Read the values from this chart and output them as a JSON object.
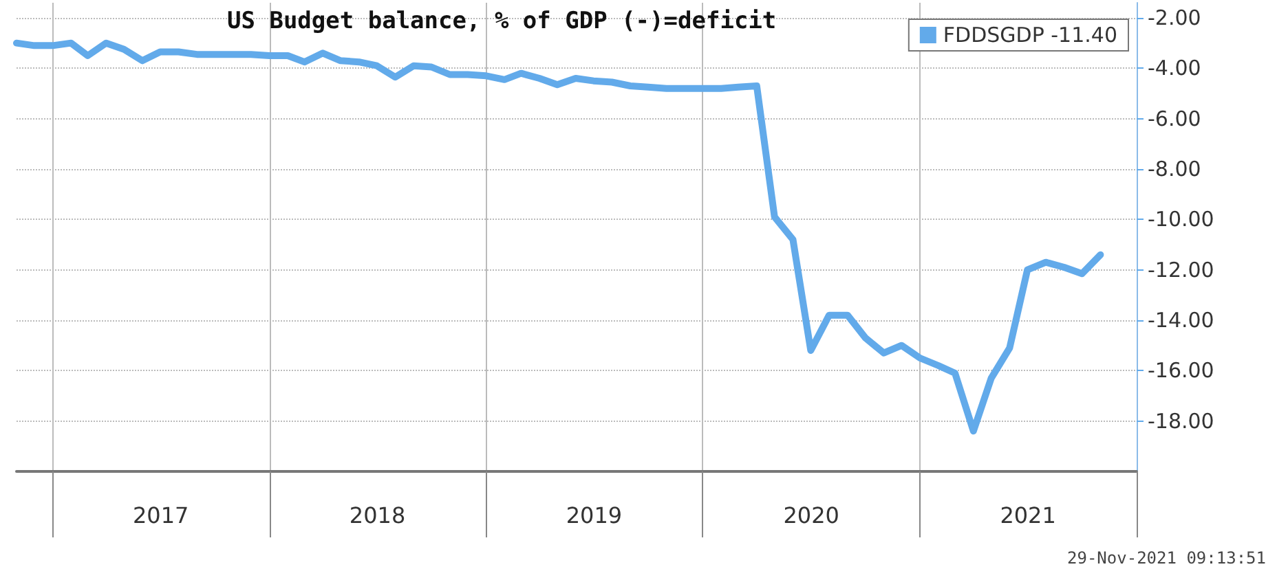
{
  "chart_data": {
    "type": "line",
    "title": "US Budget balance, % of GDP (-)=deficit",
    "x": [
      "2016-11",
      "2016-12",
      "2017-01",
      "2017-02",
      "2017-03",
      "2017-04",
      "2017-05",
      "2017-06",
      "2017-07",
      "2017-08",
      "2017-09",
      "2017-10",
      "2017-11",
      "2017-12",
      "2018-01",
      "2018-02",
      "2018-03",
      "2018-04",
      "2018-05",
      "2018-06",
      "2018-07",
      "2018-08",
      "2018-09",
      "2018-10",
      "2018-11",
      "2018-12",
      "2019-01",
      "2019-02",
      "2019-03",
      "2019-04",
      "2019-05",
      "2019-06",
      "2019-07",
      "2019-08",
      "2019-09",
      "2019-10",
      "2019-11",
      "2019-12",
      "2020-01",
      "2020-02",
      "2020-03",
      "2020-04",
      "2020-05",
      "2020-06",
      "2020-07",
      "2020-08",
      "2020-09",
      "2020-10",
      "2020-11",
      "2020-12",
      "2021-01",
      "2021-02",
      "2021-03",
      "2021-04",
      "2021-05",
      "2021-06",
      "2021-07",
      "2021-08",
      "2021-09",
      "2021-10",
      "2021-11"
    ],
    "series": [
      {
        "name": "FDDSGDP -11.40",
        "color": "#62aaea",
        "values": [
          -3.0,
          -3.1,
          -3.1,
          -3.0,
          -3.5,
          -3.0,
          -3.25,
          -3.7,
          -3.35,
          -3.35,
          -3.45,
          -3.45,
          -3.45,
          -3.45,
          -3.5,
          -3.5,
          -3.75,
          -3.4,
          -3.7,
          -3.75,
          -3.9,
          -4.35,
          -3.9,
          -3.95,
          -4.25,
          -4.25,
          -4.3,
          -4.45,
          -4.2,
          -4.4,
          -4.65,
          -4.4,
          -4.5,
          -4.55,
          -4.7,
          -4.75,
          -4.8,
          -4.8,
          -4.8,
          -4.8,
          -4.75,
          -4.7,
          -9.9,
          -10.8,
          -15.2,
          -13.8,
          -13.8,
          -14.7,
          -15.3,
          -15.0,
          -15.5,
          -15.8,
          -16.1,
          -18.4,
          -16.3,
          -15.1,
          -12.0,
          -11.7,
          -11.9,
          -12.15,
          -11.4
        ]
      }
    ],
    "xlim": [
      "2016-11-01",
      "2022-01-01"
    ],
    "xticks": [
      {
        "value": "2017-01-01",
        "label": null
      },
      {
        "value": "2017-07-02",
        "label": "2017"
      },
      {
        "value": "2018-01-01",
        "label": null
      },
      {
        "value": "2018-07-02",
        "label": "2018"
      },
      {
        "value": "2019-01-01",
        "label": null
      },
      {
        "value": "2019-07-02",
        "label": "2019"
      },
      {
        "value": "2020-01-01",
        "label": null
      },
      {
        "value": "2020-07-02",
        "label": "2020"
      },
      {
        "value": "2021-01-01",
        "label": null
      },
      {
        "value": "2021-07-02",
        "label": "2021"
      },
      {
        "value": "2022-01-01",
        "label": null
      }
    ],
    "ylim": [
      -20,
      -1.4
    ],
    "yticks": [
      {
        "value": -2,
        "label": "-2.00"
      },
      {
        "value": -4,
        "label": "-4.00"
      },
      {
        "value": -6,
        "label": "-6.00"
      },
      {
        "value": -8,
        "label": "-8.00"
      },
      {
        "value": -10,
        "label": "-10.00"
      },
      {
        "value": -12,
        "label": "-12.00"
      },
      {
        "value": -14,
        "label": "-14.00"
      },
      {
        "value": -16,
        "label": "-16.00"
      },
      {
        "value": -18,
        "label": "-18.00"
      }
    ],
    "grid": true,
    "legend": "top right",
    "marker": "none",
    "line_style": "solid",
    "annotations": [
      "29-Nov-2021 09:13:51"
    ]
  }
}
